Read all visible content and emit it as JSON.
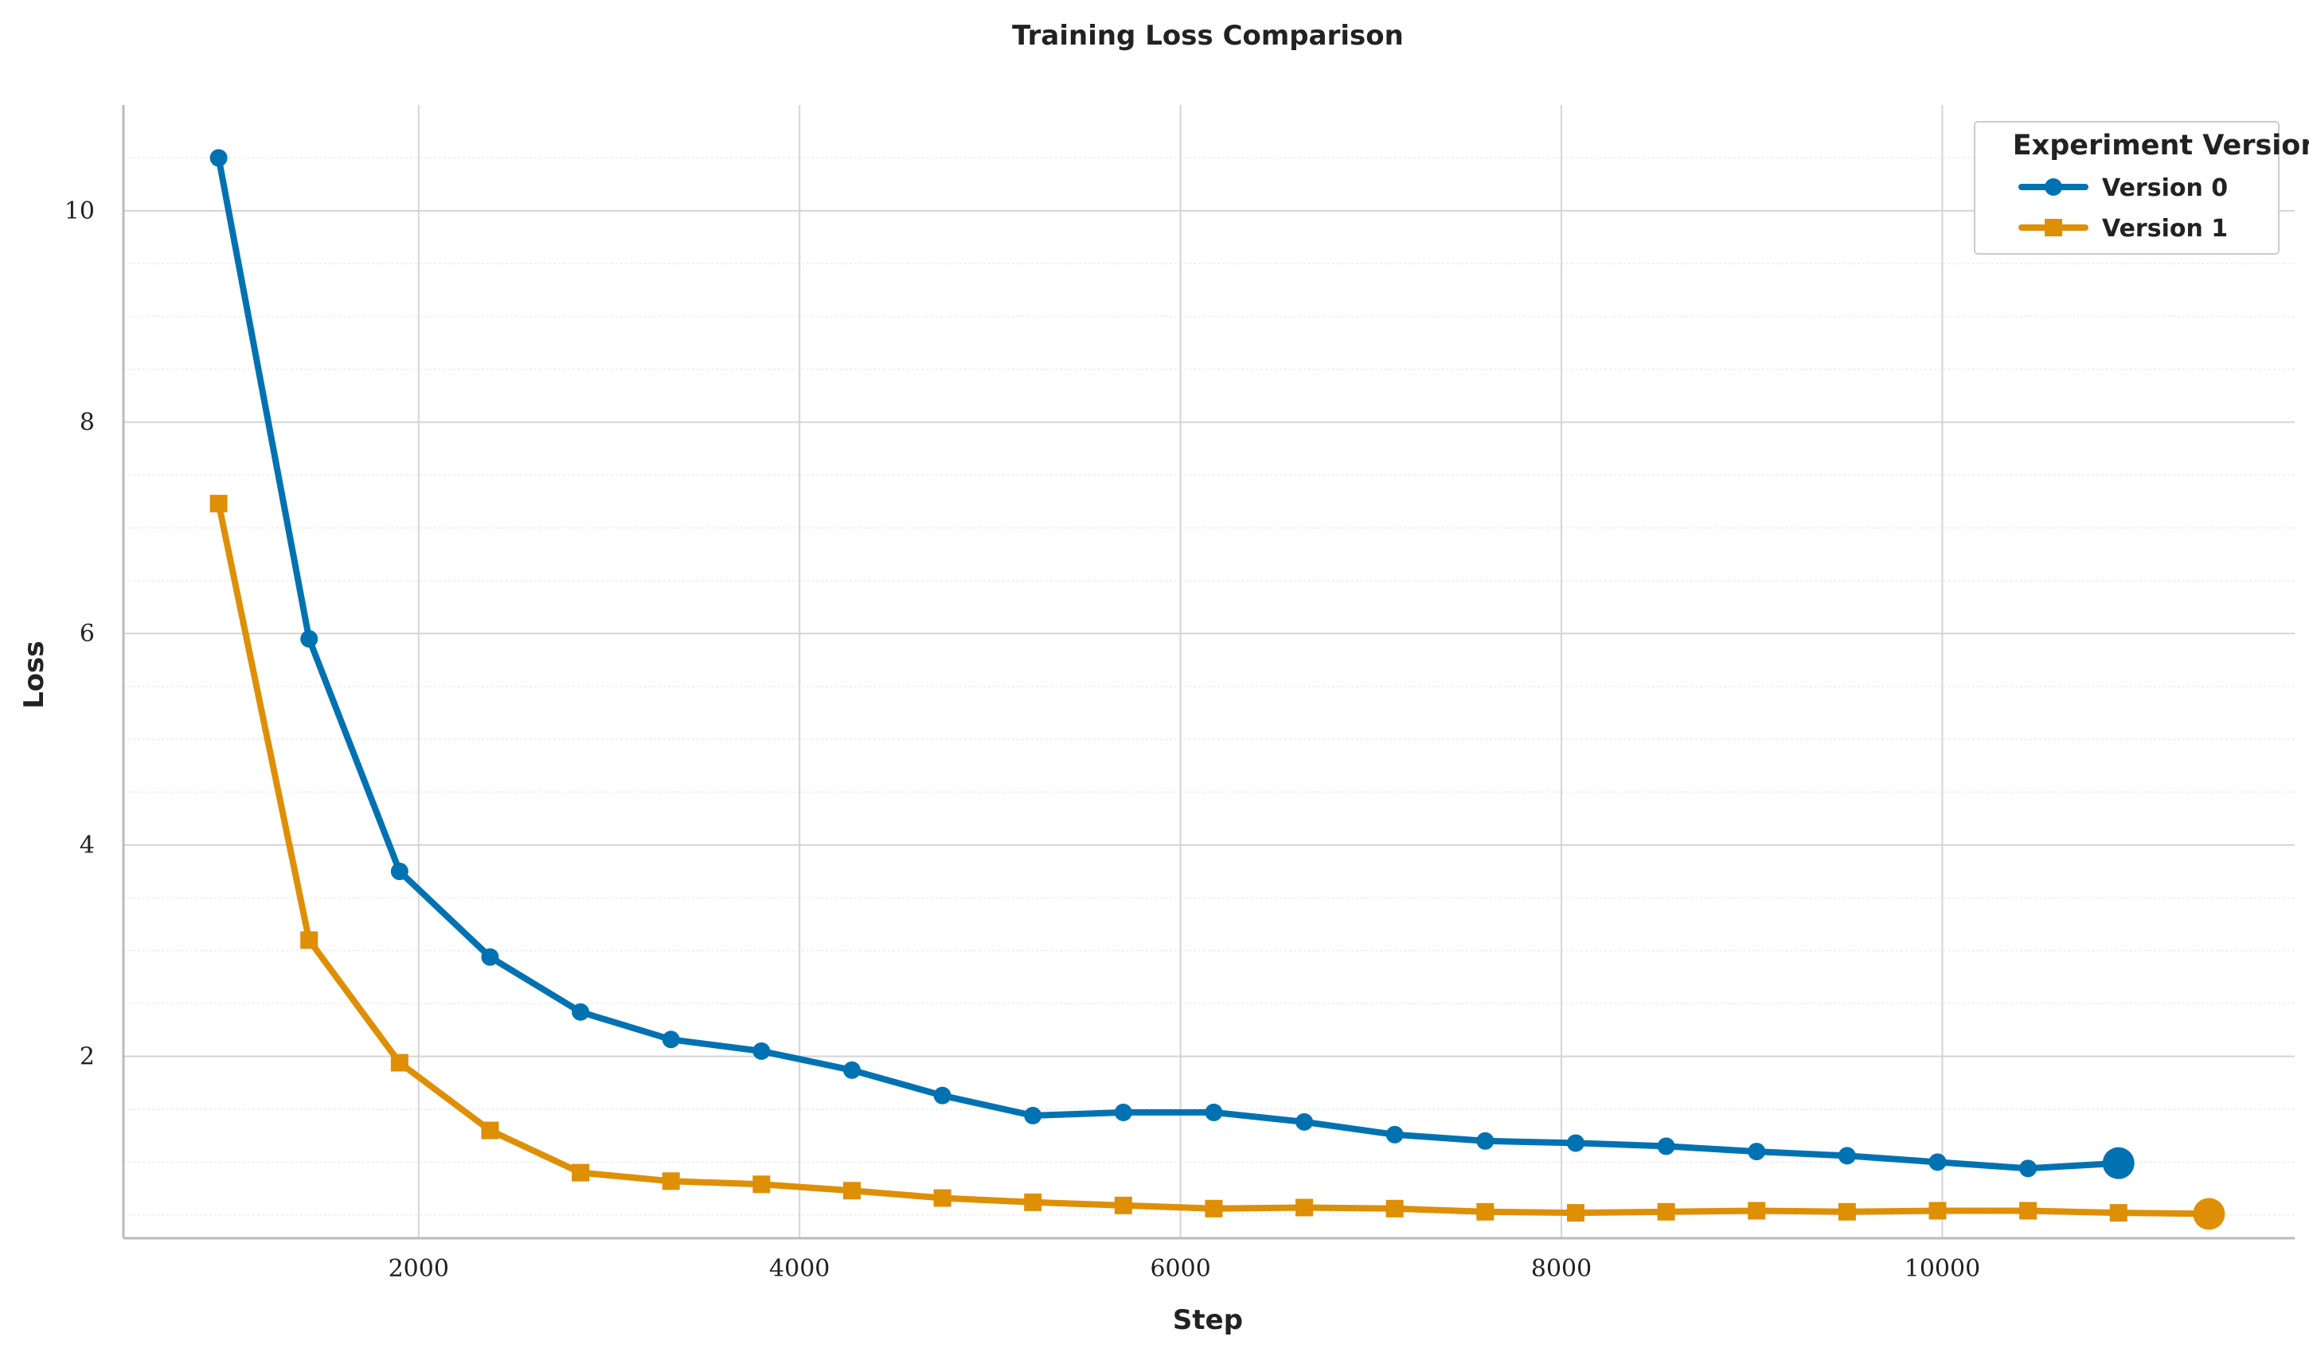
{
  "chart_data": {
    "type": "line",
    "title": "Training Loss Comparison",
    "xlabel": "Step",
    "ylabel": "Loss",
    "xlim": [
      450,
      11850
    ],
    "ylim": [
      0.28,
      11.0
    ],
    "x_ticks": [
      2000,
      4000,
      6000,
      8000,
      10000
    ],
    "y_ticks": [
      2,
      4,
      6,
      8,
      10
    ],
    "grid": true,
    "minor_grid_y": true,
    "legend": {
      "title": "Experiment Version",
      "placement": "top-right"
    },
    "series": [
      {
        "name": "Version 0",
        "color": "#0072b2",
        "marker": "circle",
        "x": [
          950,
          1425,
          1900,
          2375,
          2850,
          3325,
          3800,
          4275,
          4750,
          5225,
          5700,
          6175,
          6650,
          7125,
          7600,
          8075,
          8550,
          9025,
          9500,
          9975,
          10450,
          10925
        ],
        "values": [
          10.5,
          5.95,
          3.75,
          2.94,
          2.42,
          2.16,
          2.05,
          1.87,
          1.63,
          1.44,
          1.47,
          1.47,
          1.38,
          1.26,
          1.2,
          1.18,
          1.15,
          1.1,
          1.06,
          1.0,
          0.94,
          0.99
        ]
      },
      {
        "name": "Version 1",
        "color": "#de8f05",
        "marker": "square",
        "x": [
          950,
          1425,
          1900,
          2375,
          2850,
          3325,
          3800,
          4275,
          4750,
          5225,
          5700,
          6175,
          6650,
          7125,
          7600,
          8075,
          8550,
          9025,
          9500,
          9975,
          10450,
          10925,
          11400
        ],
        "values": [
          7.23,
          3.1,
          1.94,
          1.3,
          0.9,
          0.82,
          0.79,
          0.73,
          0.66,
          0.62,
          0.59,
          0.56,
          0.57,
          0.56,
          0.53,
          0.52,
          0.53,
          0.54,
          0.53,
          0.54,
          0.54,
          0.52,
          0.51
        ]
      }
    ]
  }
}
